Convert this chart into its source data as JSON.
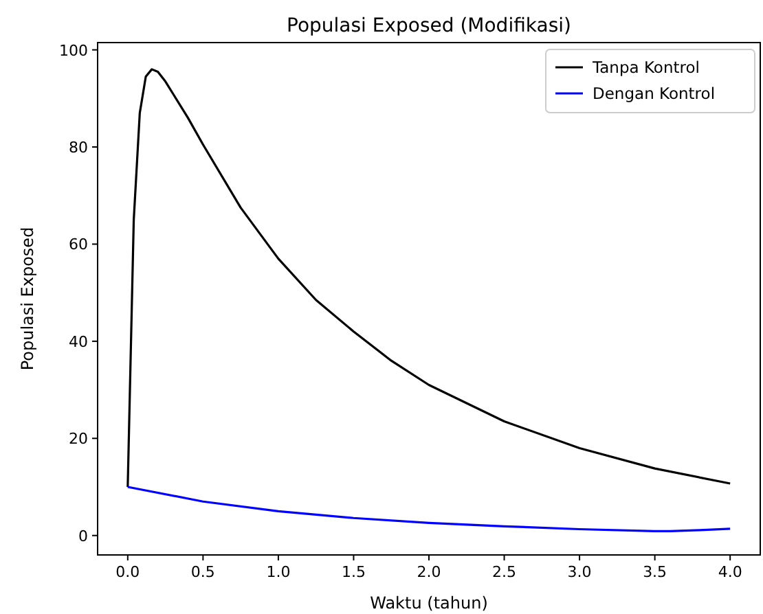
{
  "chart_data": {
    "type": "line",
    "title": "Populasi Exposed (Modifikasi)",
    "xlabel": "Waktu (tahun)",
    "ylabel": "Populasi Exposed",
    "legend": "top right",
    "grid": false,
    "xlim": [
      -0.2,
      4.2
    ],
    "ylim": [
      -4,
      101.5
    ],
    "xticks": [
      {
        "value": 0,
        "label": "0.0"
      },
      {
        "value": 0.5,
        "label": "0.5"
      },
      {
        "value": 1,
        "label": "1.0"
      },
      {
        "value": 1.5,
        "label": "1.5"
      },
      {
        "value": 2,
        "label": "2.0"
      },
      {
        "value": 2.5,
        "label": "2.5"
      },
      {
        "value": 3,
        "label": "3.0"
      },
      {
        "value": 3.5,
        "label": "3.5"
      },
      {
        "value": 4,
        "label": "4.0"
      }
    ],
    "yticks": [
      0,
      20,
      40,
      60,
      80,
      100
    ],
    "series": [
      {
        "name": "Tanpa Kontrol",
        "color": "#000000",
        "x": [
          0,
          0.04,
          0.08,
          0.12,
          0.16,
          0.2,
          0.25,
          0.3,
          0.4,
          0.5,
          0.75,
          1.0,
          1.25,
          1.5,
          1.75,
          2.0,
          2.5,
          3.0,
          3.5,
          4.0
        ],
        "values": [
          10,
          65,
          87,
          94.5,
          96,
          95.5,
          93.5,
          91,
          86,
          80.5,
          67.5,
          57,
          48.5,
          42,
          36,
          31,
          23.5,
          18,
          13.8,
          10.7
        ]
      },
      {
        "name": "Dengan Kontrol",
        "color": "#0000ff",
        "x": [
          0,
          0.5,
          1.0,
          1.5,
          2.0,
          2.5,
          3.0,
          3.5,
          3.6,
          3.8,
          4.0
        ],
        "values": [
          10,
          7,
          5,
          3.6,
          2.6,
          1.9,
          1.3,
          0.9,
          0.9,
          1.1,
          1.4
        ]
      }
    ]
  }
}
